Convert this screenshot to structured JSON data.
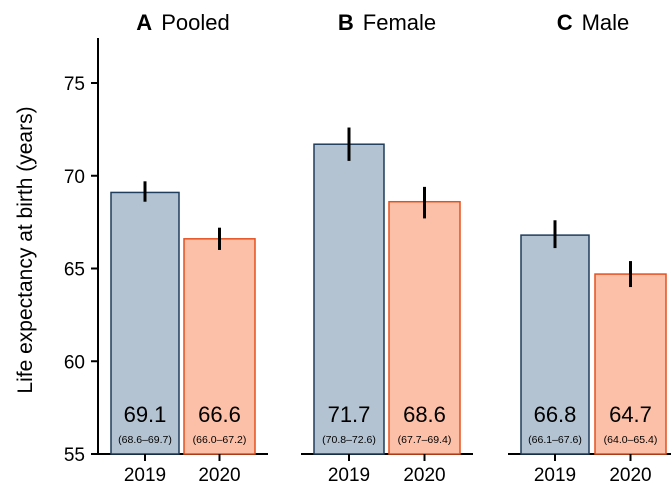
{
  "chart_data": {
    "type": "bar",
    "ylabel": "Life expectancy at birth (years)",
    "ylim": [
      55,
      77.5
    ],
    "yticks": [
      "55",
      "60",
      "65",
      "70",
      "75"
    ],
    "grid": false,
    "legend": "none",
    "colors": {
      "2019_fill": "#b4c3d1",
      "2019_stroke": "#1f3d5c",
      "2020_fill": "#fcc0a8",
      "2020_stroke": "#e5501f",
      "errorbar": "#000000"
    },
    "panels": [
      {
        "letter": "A",
        "title": "Pooled",
        "categories": [
          "2019",
          "2020"
        ],
        "values": [
          69.1,
          66.6
        ],
        "value_labels": [
          "69.1",
          "66.6"
        ],
        "ci_low": [
          68.6,
          66.0
        ],
        "ci_high": [
          69.7,
          67.2
        ],
        "ci_labels": [
          "(68.6–69.7)",
          "(66.0–67.2)"
        ]
      },
      {
        "letter": "B",
        "title": "Female",
        "categories": [
          "2019",
          "2020"
        ],
        "values": [
          71.7,
          68.6
        ],
        "value_labels": [
          "71.7",
          "68.6"
        ],
        "ci_low": [
          70.8,
          67.7
        ],
        "ci_high": [
          72.6,
          69.4
        ],
        "ci_labels": [
          "(70.8–72.6)",
          "(67.7–69.4)"
        ]
      },
      {
        "letter": "C",
        "title": "Male",
        "categories": [
          "2019",
          "2020"
        ],
        "values": [
          66.8,
          64.7
        ],
        "value_labels": [
          "66.8",
          "64.7"
        ],
        "ci_low": [
          66.1,
          64.0
        ],
        "ci_high": [
          67.6,
          65.4
        ],
        "ci_labels": [
          "(66.1–67.6)",
          "(64.0–65.4)"
        ]
      }
    ]
  }
}
